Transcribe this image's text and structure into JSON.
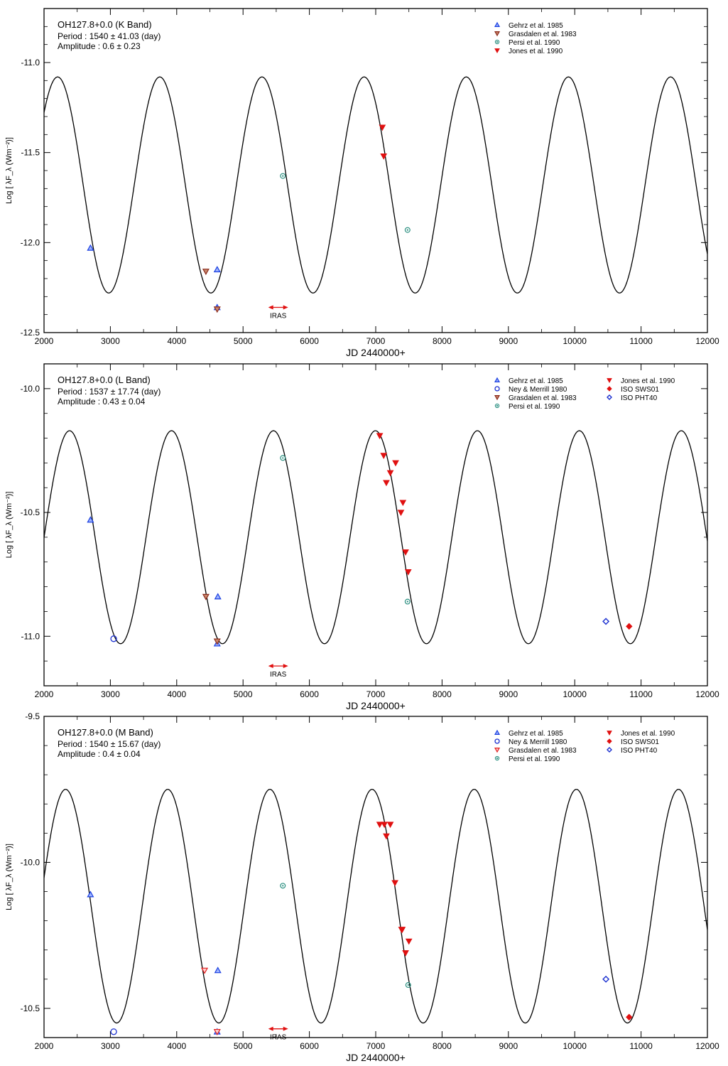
{
  "figure": {
    "xlabel_text": "JD 2440000+",
    "ylabel_text": "Log [ λF_λ (Wm⁻²)]"
  },
  "chart_data": [
    {
      "type": "scatter",
      "panel": "K",
      "title": "OH127.8+0.0 (K Band)",
      "period_text": "Period : 1540 ± 41.03 (day)",
      "amplitude_text": "Amplitude : 0.6 ± 0.23",
      "xlabel": "JD 2440000+",
      "ylabel": "Log [ λF_λ (Wm⁻²)]",
      "xlim": [
        2000,
        12000
      ],
      "ylim": [
        -12.5,
        -10.7
      ],
      "xticks": [
        2000,
        3000,
        4000,
        5000,
        6000,
        7000,
        8000,
        9000,
        10000,
        11000,
        12000
      ],
      "yticks": [
        -12.5,
        -12.0,
        -11.5,
        -11.0
      ],
      "ytick_labels": [
        "-12.5",
        "-12.0",
        "-11.5",
        "-11.0"
      ],
      "model": {
        "period": 1540,
        "max_jd": 2205,
        "mean": -11.68,
        "half_amplitude": 0.6
      },
      "iras": {
        "label": "IRAS",
        "x_start": 5380,
        "x_end": 5680,
        "y": -12.36
      },
      "legend_position": "top-right",
      "series": [
        {
          "name": "Gehrz et al. 1985",
          "marker": "triangle-up",
          "color": "#1a3fe0",
          "points": [
            [
              2700,
              -12.03
            ],
            [
              4610,
              -12.15
            ],
            [
              4610,
              -12.36
            ]
          ]
        },
        {
          "name": "Grasdalen et al. 1983",
          "marker": "triangle-down",
          "color": "#8b2a1a",
          "points": [
            [
              4440,
              -12.16
            ],
            [
              4610,
              -12.37
            ]
          ]
        },
        {
          "name": "Persi et al. 1990",
          "marker": "circle-dot",
          "color": "#2a8f80",
          "points": [
            [
              5600,
              -11.63
            ],
            [
              7480,
              -11.93
            ]
          ]
        },
        {
          "name": "Jones et al. 1990",
          "marker": "triangle-down-filled",
          "color": "#e01010",
          "points": [
            [
              7100,
              -11.36
            ],
            [
              7120,
              -11.52
            ]
          ]
        }
      ]
    },
    {
      "type": "scatter",
      "panel": "L",
      "title": "OH127.8+0.0 (L Band)",
      "period_text": "Period : 1537 ± 17.74 (day)",
      "amplitude_text": "Amplitude : 0.43 ± 0.04",
      "xlabel": "JD 2440000+",
      "ylabel": "Log [ λF_λ (Wm⁻²)]",
      "xlim": [
        2000,
        12000
      ],
      "ylim": [
        -11.2,
        -9.9
      ],
      "xticks": [
        2000,
        3000,
        4000,
        5000,
        6000,
        7000,
        8000,
        9000,
        10000,
        11000,
        12000
      ],
      "yticks": [
        -11.0,
        -10.5,
        -10.0
      ],
      "ytick_labels": [
        "-11.0",
        "-10.5",
        "-10.0"
      ],
      "model": {
        "period": 1537,
        "max_jd": 2385,
        "mean": -10.6,
        "half_amplitude": 0.43
      },
      "iras": {
        "label": "IRAS",
        "x_start": 5380,
        "x_end": 5680,
        "y": -11.12
      },
      "legend_position": "top-right",
      "series": [
        {
          "name": "Gehrz et al. 1985",
          "marker": "triangle-up",
          "color": "#1a3fe0",
          "points": [
            [
              2700,
              -10.53
            ],
            [
              4620,
              -10.84
            ],
            [
              4610,
              -11.03
            ]
          ]
        },
        {
          "name": "Ney & Merrill 1980",
          "marker": "circle",
          "color": "#1a2fd0",
          "points": [
            [
              3050,
              -11.01
            ]
          ]
        },
        {
          "name": "Grasdalen et al. 1983",
          "marker": "triangle-down",
          "color": "#8b2a1a",
          "points": [
            [
              4440,
              -10.84
            ],
            [
              4610,
              -11.02
            ]
          ]
        },
        {
          "name": "Persi et al. 1990",
          "marker": "circle-dot",
          "color": "#2a8f80",
          "points": [
            [
              5600,
              -10.28
            ],
            [
              7480,
              -10.86
            ]
          ]
        },
        {
          "name": "Jones et al. 1990",
          "marker": "triangle-down-filled",
          "color": "#e01010",
          "points": [
            [
              7060,
              -10.19
            ],
            [
              7120,
              -10.27
            ],
            [
              7160,
              -10.38
            ],
            [
              7220,
              -10.34
            ],
            [
              7300,
              -10.3
            ],
            [
              7380,
              -10.5
            ],
            [
              7410,
              -10.46
            ],
            [
              7450,
              -10.66
            ],
            [
              7490,
              -10.74
            ]
          ]
        },
        {
          "name": "ISO SWS01",
          "marker": "diamond-filled",
          "color": "#e01010",
          "points": [
            [
              10820,
              -10.96
            ]
          ]
        },
        {
          "name": "ISO PHT40",
          "marker": "diamond",
          "color": "#1a2fd0",
          "points": [
            [
              10470,
              -10.94
            ]
          ]
        }
      ]
    },
    {
      "type": "scatter",
      "panel": "M",
      "title": "OH127.8+0.0 (M Band)",
      "period_text": "Period : 1540 ± 15.67 (day)",
      "amplitude_text": "Amplitude : 0.4 ± 0.04",
      "xlabel": "JD 2440000+",
      "ylabel": "Log [ λF_λ (Wm⁻²)]",
      "xlim": [
        2000,
        12000
      ],
      "ylim": [
        -10.6,
        -9.5
      ],
      "xticks": [
        2000,
        3000,
        4000,
        5000,
        6000,
        7000,
        8000,
        9000,
        10000,
        11000,
        12000
      ],
      "yticks": [
        -10.5,
        -10.0,
        -9.5
      ],
      "ytick_labels": [
        "-10.5",
        "-10.0",
        "-9.5"
      ],
      "model": {
        "period": 1540,
        "max_jd": 2325,
        "mean": -10.15,
        "half_amplitude": 0.4
      },
      "iras": {
        "label": "IRAS",
        "x_start": 5380,
        "x_end": 5680,
        "y": -10.57
      },
      "legend_position": "top-right",
      "series": [
        {
          "name": "Gehrz et al. 1985",
          "marker": "triangle-up",
          "color": "#1a3fe0",
          "points": [
            [
              2700,
              -10.11
            ],
            [
              4620,
              -10.37
            ],
            [
              4610,
              -10.58
            ]
          ]
        },
        {
          "name": "Ney & Merrill 1980",
          "marker": "circle",
          "color": "#1a2fd0",
          "points": [
            [
              3050,
              -10.58
            ]
          ]
        },
        {
          "name": "Grasdalen et al. 1983",
          "marker": "triangle-down-open",
          "color": "#e02020",
          "points": [
            [
              4420,
              -10.37
            ],
            [
              4610,
              -10.58
            ]
          ]
        },
        {
          "name": "Persi et al. 1990",
          "marker": "circle-dot",
          "color": "#2a8f80",
          "points": [
            [
              5600,
              -10.08
            ],
            [
              7490,
              -10.42
            ]
          ]
        },
        {
          "name": "Jones et al. 1990",
          "marker": "triangle-down-filled",
          "color": "#e01010",
          "points": [
            [
              7060,
              -9.87
            ],
            [
              7130,
              -9.87
            ],
            [
              7160,
              -9.91
            ],
            [
              7220,
              -9.87
            ],
            [
              7290,
              -10.07
            ],
            [
              7390,
              -10.23
            ],
            [
              7400,
              -10.23
            ],
            [
              7450,
              -10.31
            ],
            [
              7500,
              -10.27
            ]
          ]
        },
        {
          "name": "ISO SWS01",
          "marker": "diamond-filled",
          "color": "#e01010",
          "points": [
            [
              10820,
              -10.53
            ]
          ]
        },
        {
          "name": "ISO PHT40",
          "marker": "diamond",
          "color": "#1a2fd0",
          "points": [
            [
              10470,
              -10.4
            ]
          ]
        }
      ]
    }
  ]
}
